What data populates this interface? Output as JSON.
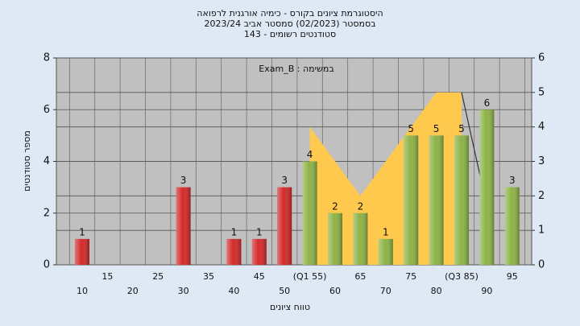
{
  "chart_data": {
    "type": "bar",
    "title": "היסטוגרמת ציונים בקורס - כימיה אורגנית לרפואה",
    "subtitle": "בסמסטר  (02/2023)  סמסטר אביב 2023/24",
    "subtitle2": "סטודנטים רשומים - 143",
    "annotation": "במשימה : Exam_B",
    "xlabel": "טווח ציונים",
    "ylabel": "מספר סטודנטים",
    "categories": [
      "10",
      "15",
      "20",
      "25",
      "30",
      "35",
      "40",
      "45",
      "50",
      "(Q1 55)",
      "60",
      "65",
      "70",
      "75",
      "80",
      "(Q3 85)",
      "90",
      "95"
    ],
    "values": [
      1,
      0,
      0,
      0,
      3,
      0,
      1,
      1,
      3,
      4,
      2,
      2,
      1,
      5,
      5,
      5,
      6,
      3
    ],
    "colors": [
      "#d42a2a",
      "#d42a2a",
      "#d42a2a",
      "#d42a2a",
      "#d42a2a",
      "#d42a2a",
      "#d42a2a",
      "#d42a2a",
      "#d42a2a",
      "#8db347",
      "#8db347",
      "#8db347",
      "#8db347",
      "#8db347",
      "#8db347",
      "#8db347",
      "#8db347",
      "#8db347"
    ],
    "area": {
      "color": "#ffc94d",
      "axis": "y2",
      "values": [
        null,
        null,
        null,
        null,
        null,
        null,
        null,
        null,
        null,
        4,
        3,
        2,
        3,
        4,
        5,
        5,
        null,
        null
      ]
    },
    "line": {
      "color": "#333333",
      "axis": "y2",
      "values": [
        null,
        null,
        null,
        null,
        null,
        null,
        null,
        null,
        null,
        null,
        null,
        null,
        null,
        null,
        null,
        5,
        1.7,
        null
      ]
    },
    "ylim": [
      0,
      8
    ],
    "yticks": [
      0,
      2,
      4,
      6,
      8
    ],
    "y2lim": [
      0,
      6
    ],
    "y2ticks": [
      0,
      1,
      2,
      3,
      4,
      5,
      6
    ],
    "grid": true
  }
}
